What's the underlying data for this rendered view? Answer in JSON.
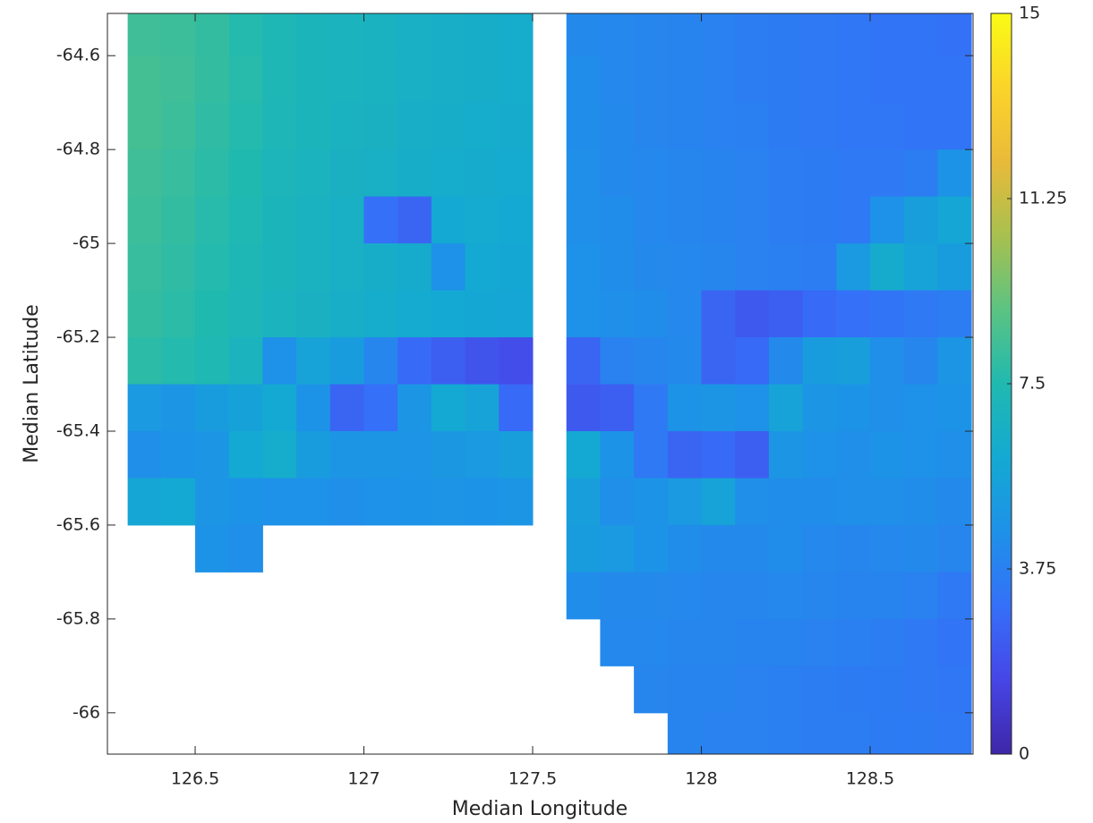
{
  "chart_data": {
    "type": "heatmap",
    "x_label": "Median Longitude",
    "y_label": "Median Latitude",
    "xlim": [
      126.24,
      128.805
    ],
    "ylim": [
      -66.088,
      -64.51
    ],
    "xticks": [
      126.5,
      127,
      127.5,
      128,
      128.5
    ],
    "yticks": [
      -64.6,
      -64.8,
      -65,
      -65.2,
      -65.4,
      -65.6,
      -65.8,
      -66
    ],
    "clim": [
      0,
      15
    ],
    "cticks": [
      0,
      3.75,
      7.5,
      11.25,
      15
    ],
    "colormap": [
      "#3e26a8",
      "#4646e6",
      "#3570f8",
      "#1e91e8",
      "#14a9d2",
      "#20b9b0",
      "#5cc382",
      "#a8c04f",
      "#e9ba3a",
      "#fbd42a",
      "#f9fb15"
    ],
    "x": [
      126.35,
      126.45,
      126.55,
      126.65,
      126.75,
      126.85,
      126.95,
      127.05,
      127.15,
      127.25,
      127.35,
      127.45,
      127.55,
      127.65,
      127.75,
      127.85,
      127.95,
      128.05,
      128.15,
      128.25,
      128.35,
      128.45,
      128.55,
      128.65,
      128.75
    ],
    "y": [
      -64.55,
      -64.65,
      -64.75,
      -64.85,
      -64.95,
      -65.05,
      -65.15,
      -65.25,
      -65.35,
      -65.45,
      -65.55,
      -65.65,
      -65.75,
      -65.85,
      -65.95,
      -66.05
    ],
    "z": [
      [
        8.3,
        8.2,
        8,
        7.6,
        7.3,
        7,
        6.9,
        6.8,
        6.6,
        6.5,
        6.4,
        6.3,
        null,
        4.2,
        4.1,
        4.0,
        3.9,
        3.8,
        3.6,
        3.5,
        3.4,
        3.3,
        3.2,
        3.2,
        3.1
      ],
      [
        8.4,
        8.3,
        8.0,
        7.7,
        7.3,
        7.0,
        6.9,
        6.8,
        6.6,
        6.5,
        6.4,
        6.3,
        null,
        4.3,
        4.1,
        4.0,
        3.9,
        3.8,
        3.6,
        3.5,
        3.4,
        3.3,
        3.2,
        3.2,
        3.2
      ],
      [
        8.4,
        8.2,
        7.9,
        7.6,
        7.2,
        7.0,
        6.8,
        6.7,
        6.5,
        6.4,
        6.3,
        6.2,
        null,
        4.3,
        4.2,
        4.0,
        3.9,
        3.8,
        3.7,
        3.5,
        3.4,
        3.3,
        3.3,
        3.2,
        3.2
      ],
      [
        8.3,
        8.1,
        7.8,
        7.5,
        7.1,
        6.9,
        6.7,
        6.6,
        6.4,
        6.3,
        6.2,
        6.1,
        null,
        4.4,
        4.2,
        4.1,
        4.0,
        3.9,
        3.8,
        3.6,
        3.5,
        3.4,
        3.4,
        3.6,
        4.6
      ],
      [
        8.2,
        8.0,
        7.7,
        7.4,
        7.0,
        6.8,
        6.6,
        3.0,
        2.6,
        6.0,
        6.1,
        6.0,
        null,
        4.4,
        4.3,
        4.1,
        4.0,
        3.9,
        3.8,
        3.6,
        3.5,
        3.4,
        4.5,
        5.3,
        5.8
      ],
      [
        8.1,
        7.9,
        7.6,
        7.3,
        7.0,
        6.8,
        6.6,
        6.4,
        6.2,
        4.5,
        6.0,
        5.9,
        null,
        4.5,
        4.3,
        4.2,
        4.1,
        4.0,
        3.8,
        3.7,
        3.6,
        5.0,
        6.2,
        5.6,
        5.2
      ],
      [
        8.0,
        7.8,
        7.5,
        7.2,
        6.9,
        6.7,
        6.5,
        6.3,
        6.1,
        6.0,
        5.9,
        5.8,
        null,
        4.5,
        4.4,
        4.3,
        4.1,
        2.6,
        2.2,
        2.4,
        2.8,
        3.0,
        3.2,
        3.4,
        3.6
      ],
      [
        7.8,
        7.6,
        7.4,
        6.9,
        4.5,
        5.6,
        5.2,
        4.0,
        2.8,
        2.4,
        2.0,
        1.8,
        null,
        2.6,
        3.8,
        4.0,
        4.2,
        2.6,
        2.8,
        4.2,
        5.2,
        5.4,
        4.4,
        4.0,
        4.8
      ],
      [
        5.0,
        4.8,
        5.2,
        5.5,
        6.0,
        4.6,
        2.6,
        3.0,
        4.8,
        6.0,
        5.6,
        2.8,
        null,
        2.2,
        2.4,
        3.4,
        4.6,
        4.8,
        4.5,
        5.6,
        4.8,
        4.6,
        4.4,
        4.5,
        4.6
      ],
      [
        4.4,
        4.6,
        4.8,
        6.0,
        6.3,
        5.2,
        4.8,
        4.8,
        4.7,
        4.9,
        5.0,
        5.4,
        null,
        6.0,
        4.6,
        3.4,
        2.6,
        2.8,
        2.4,
        4.8,
        4.5,
        4.4,
        4.6,
        4.5,
        4.4
      ],
      [
        5.8,
        6.0,
        4.8,
        4.6,
        4.5,
        4.5,
        4.4,
        4.5,
        4.6,
        4.7,
        4.6,
        4.8,
        null,
        5.4,
        4.4,
        4.6,
        5.0,
        5.6,
        4.4,
        4.3,
        4.3,
        4.4,
        4.4,
        4.3,
        4.2
      ],
      [
        null,
        null,
        4.6,
        4.4,
        null,
        null,
        null,
        null,
        null,
        null,
        null,
        null,
        null,
        5.2,
        5.0,
        4.6,
        4.3,
        4.2,
        4.2,
        4.3,
        4.1,
        4.0,
        4.1,
        4.2,
        4.0
      ],
      [
        null,
        null,
        null,
        null,
        null,
        null,
        null,
        null,
        null,
        null,
        null,
        null,
        null,
        4.3,
        4.2,
        4.2,
        4.1,
        4.0,
        4.0,
        4.1,
        4.0,
        3.9,
        3.9,
        3.8,
        3.4
      ],
      [
        null,
        null,
        null,
        null,
        null,
        null,
        null,
        null,
        null,
        null,
        null,
        null,
        null,
        null,
        4.1,
        4.1,
        4.0,
        4.0,
        3.9,
        3.9,
        3.8,
        3.7,
        3.6,
        3.4,
        3.2
      ],
      [
        null,
        null,
        null,
        null,
        null,
        null,
        null,
        null,
        null,
        null,
        null,
        null,
        null,
        null,
        null,
        4.0,
        3.9,
        3.9,
        3.8,
        3.7,
        3.6,
        3.5,
        3.5,
        3.4,
        3.3
      ],
      [
        null,
        null,
        null,
        null,
        null,
        null,
        null,
        null,
        null,
        null,
        null,
        null,
        null,
        null,
        null,
        null,
        3.9,
        3.8,
        3.8,
        3.7,
        3.6,
        3.6,
        3.5,
        3.5,
        3.4
      ]
    ]
  }
}
